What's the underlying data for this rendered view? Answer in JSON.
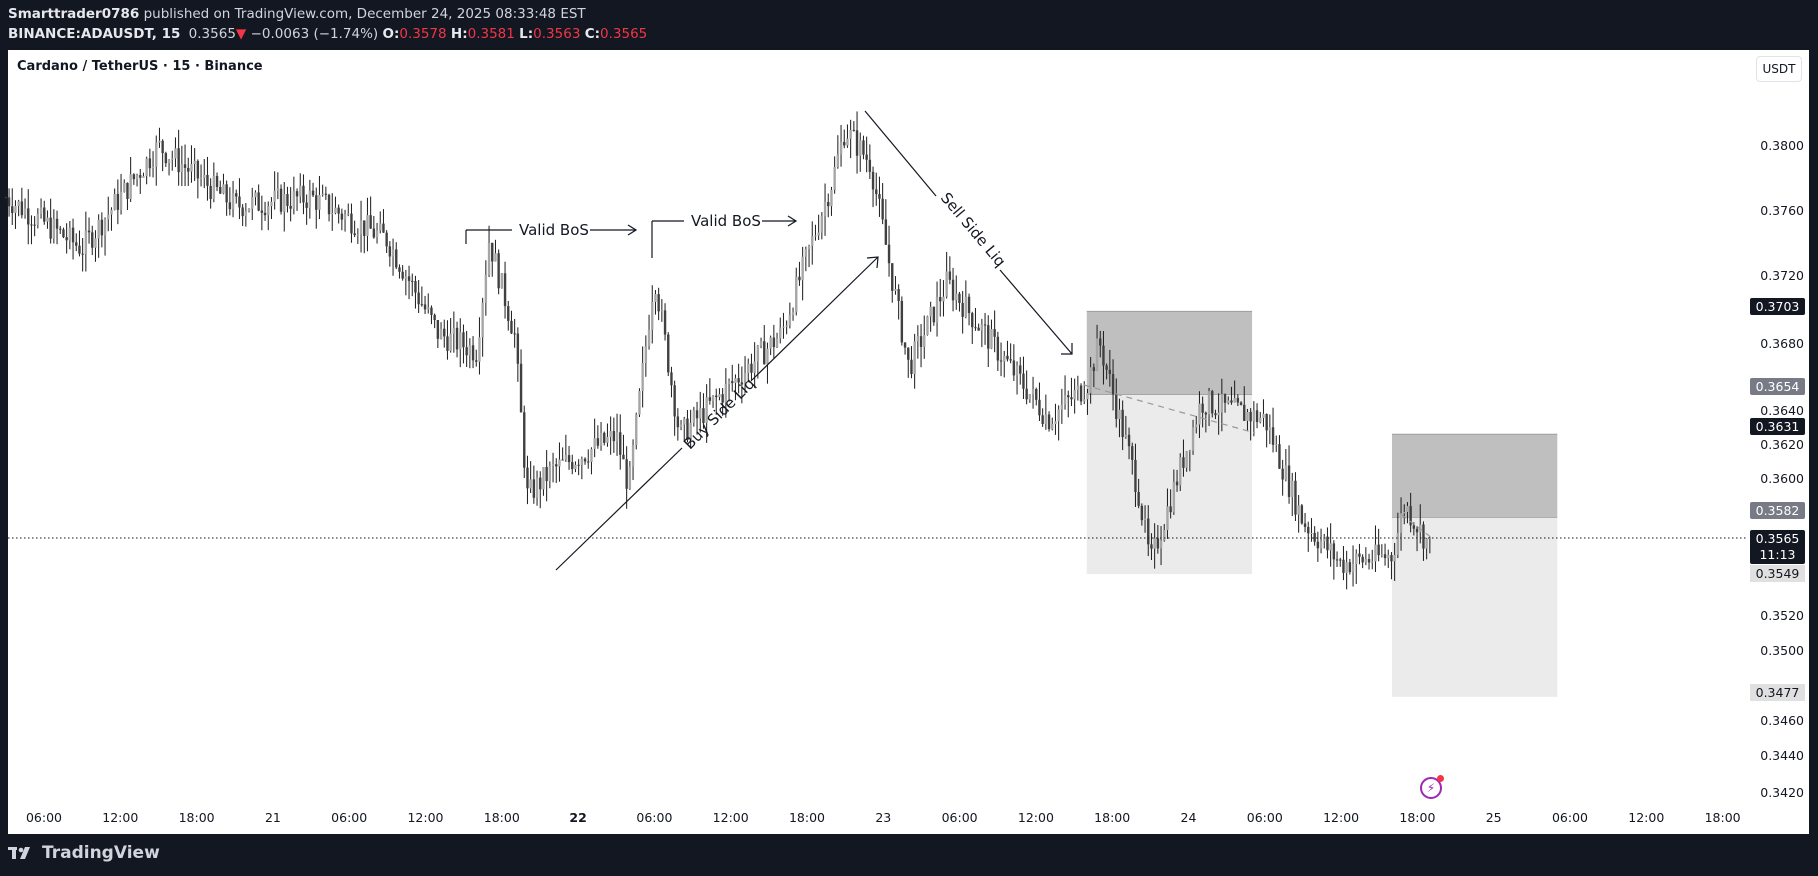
{
  "header": {
    "author": "Smarttrader0786",
    "published_text": "published on TradingView.com, December 24, 2025 08:33:48 EST",
    "symbol": "BINANCE:ADAUSDT, 15",
    "last_price": "0.3565",
    "change_arrow": "▼",
    "change": "−0.0063 (−1.74%)",
    "o_label": "O:",
    "o_value": "0.3578",
    "h_label": "H:",
    "h_value": "0.3581",
    "l_label": "L:",
    "l_value": "0.3563",
    "c_label": "C:",
    "c_value": "0.3565"
  },
  "chart": {
    "title": "Cardano / TetherUS · 15 · Binance",
    "currency_button": "USDT",
    "annotations": {
      "bos1": "Valid BoS",
      "bos2": "Valid BoS",
      "buy_side": "Buy Side Liq",
      "sell_side": "Sell Side Liq"
    },
    "price_tags": {
      "t3703": "0.3703",
      "t3654": "0.3654",
      "t3631": "0.3631",
      "t3582": "0.3582",
      "t3565": "0.3565",
      "countdown": "11:13",
      "t3549": "0.3549",
      "t3477": "0.3477"
    }
  },
  "footer": {
    "brand": "TradingView"
  },
  "colors": {
    "background": "#131722",
    "panel": "#ffffff",
    "negative": "#f23645",
    "candle_up": "#a6a6a6",
    "candle_down": "#404040",
    "zone_dark": "#bfbfbf",
    "zone_light": "#ebebeb",
    "flash_icon": "#9c27b0"
  },
  "chart_data": {
    "type": "candlestick",
    "title": "Cardano / TetherUS · 15 · Binance",
    "symbol": "BINANCE:ADAUSDT",
    "interval": "15",
    "ylabel": "USDT",
    "ylim": [
      0.341,
      0.3825
    ],
    "y_ticks": [
      "0.3800",
      "0.3760",
      "0.3720",
      "0.3680",
      "0.3640",
      "0.3620",
      "0.3600",
      "0.3520",
      "0.3500",
      "0.3460",
      "0.3440",
      "0.3420"
    ],
    "x_ticks": [
      "06:00",
      "12:00",
      "18:00",
      "21",
      "06:00",
      "12:00",
      "18:00",
      "22",
      "06:00",
      "12:00",
      "18:00",
      "23",
      "06:00",
      "12:00",
      "18:00",
      "24",
      "06:00",
      "12:00",
      "18:00",
      "25",
      "06:00",
      "12:00",
      "18:00"
    ],
    "ohlc_last": {
      "open": 0.3578,
      "high": 0.3581,
      "low": 0.3563,
      "close": 0.3565
    },
    "change": -0.0063,
    "change_pct": -1.74,
    "path_approx": [
      {
        "t": "20 03:00",
        "p": 0.377
      },
      {
        "t": "20 09:00",
        "p": 0.374
      },
      {
        "t": "20 15:00",
        "p": 0.38
      },
      {
        "t": "20 21:00",
        "p": 0.3765
      },
      {
        "t": "21 03:00",
        "p": 0.377
      },
      {
        "t": "21 09:00",
        "p": 0.3745
      },
      {
        "t": "21 13:00",
        "p": 0.369
      },
      {
        "t": "21 16:00",
        "p": 0.368
      },
      {
        "t": "21 17:00",
        "p": 0.3745
      },
      {
        "t": "21 19:00",
        "p": 0.369
      },
      {
        "t": "21 20:00",
        "p": 0.3595
      },
      {
        "t": "21 22:00",
        "p": 0.361
      },
      {
        "t": "22 03:00",
        "p": 0.363
      },
      {
        "t": "22 04:00",
        "p": 0.36
      },
      {
        "t": "22 06:00",
        "p": 0.3725
      },
      {
        "t": "22 08:00",
        "p": 0.363
      },
      {
        "t": "22 12:00",
        "p": 0.366
      },
      {
        "t": "22 16:00",
        "p": 0.369
      },
      {
        "t": "22 20:00",
        "p": 0.378
      },
      {
        "t": "22 21:00",
        "p": 0.381
      },
      {
        "t": "22 23:00",
        "p": 0.379
      },
      {
        "t": "23 01:00",
        "p": 0.371
      },
      {
        "t": "23 02:00",
        "p": 0.367
      },
      {
        "t": "23 05:00",
        "p": 0.372
      },
      {
        "t": "23 09:00",
        "p": 0.368
      },
      {
        "t": "23 13:00",
        "p": 0.364
      },
      {
        "t": "23 16:00",
        "p": 0.366
      },
      {
        "t": "23 17:00",
        "p": 0.3685
      },
      {
        "t": "23 20:00",
        "p": 0.36
      },
      {
        "t": "23 21:00",
        "p": 0.3555
      },
      {
        "t": "24 01:00",
        "p": 0.365
      },
      {
        "t": "24 06:00",
        "p": 0.364
      },
      {
        "t": "24 09:00",
        "p": 0.358
      },
      {
        "t": "24 12:00",
        "p": 0.3555
      },
      {
        "t": "24 16:00",
        "p": 0.356
      },
      {
        "t": "24 17:00",
        "p": 0.359
      },
      {
        "t": "24 19:00",
        "p": 0.3565
      }
    ],
    "zones": [
      {
        "name": "zone1_upper",
        "x_from": "23 16:00",
        "x_to": "24 05:00",
        "top": 0.3703,
        "bottom": 0.3654,
        "fill": "#bfbfbf"
      },
      {
        "name": "zone1_lower",
        "x_from": "23 16:00",
        "x_to": "24 05:00",
        "top": 0.3654,
        "bottom": 0.3549,
        "fill": "#ebebeb"
      },
      {
        "name": "zone2_upper",
        "x_from": "24 16:00",
        "x_to": "25 05:00",
        "top": 0.3631,
        "bottom": 0.3582,
        "fill": "#bfbfbf"
      },
      {
        "name": "zone2_lower",
        "x_from": "24 16:00",
        "x_to": "25 05:00",
        "top": 0.3582,
        "bottom": 0.3477,
        "fill": "#ebebeb"
      }
    ],
    "annotations": [
      {
        "text": "Valid BoS",
        "type": "horizontal-arrow",
        "level": 0.3746
      },
      {
        "text": "Valid BoS",
        "type": "horizontal-arrow",
        "level": 0.3754
      },
      {
        "text": "Buy Side Liq",
        "type": "trend-arrow",
        "from": 0.3555,
        "to": 0.3735
      },
      {
        "text": "Sell Side Liq",
        "type": "trend-arrow",
        "from": 0.381,
        "to": 0.3667
      }
    ],
    "current_price_line": 0.3565,
    "legend": "none",
    "grid": false
  }
}
